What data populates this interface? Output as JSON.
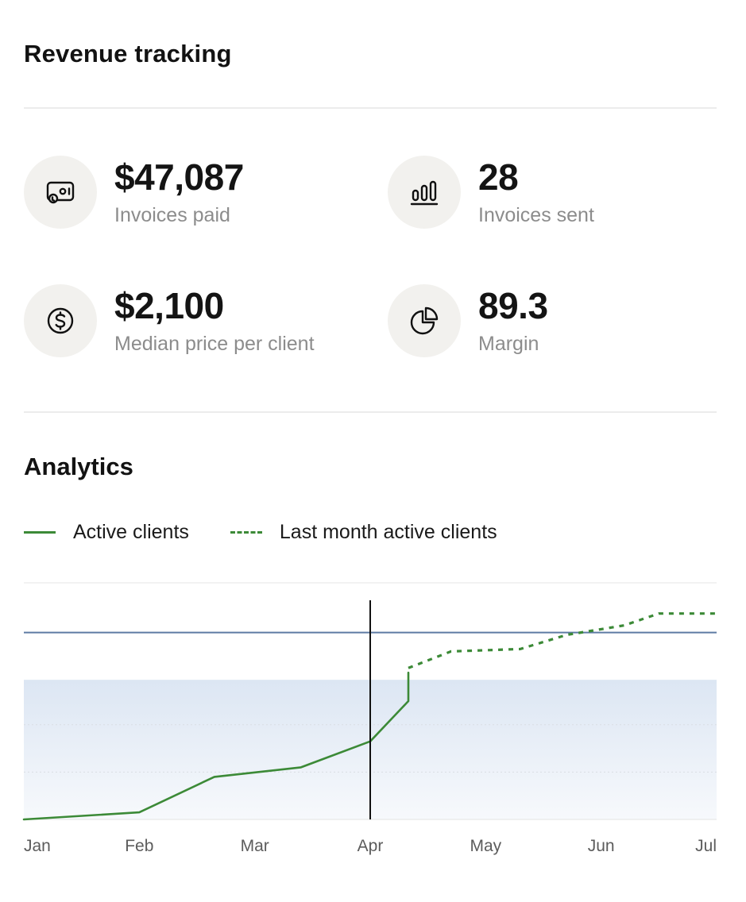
{
  "header": {
    "title": "Revenue tracking"
  },
  "stats": [
    {
      "value": "$47,087",
      "label": "Invoices paid",
      "icon": "invoice-icon"
    },
    {
      "value": "28",
      "label": "Invoices sent",
      "icon": "bar-chart-icon"
    },
    {
      "value": "$2,100",
      "label": "Median price per client",
      "icon": "dollar-icon"
    },
    {
      "value": "89.3",
      "label": "Margin",
      "icon": "pie-chart-icon"
    }
  ],
  "analytics": {
    "title": "Analytics",
    "legend": [
      {
        "label": "Active clients",
        "style": "solid"
      },
      {
        "label": "Last month active clients",
        "style": "dashed"
      }
    ]
  },
  "colors": {
    "series": "#3c8a37",
    "reference_line": "#5d7aa3",
    "band": "#dfe8f5",
    "cursor": "#111111",
    "icon_bg": "#f2f1ee"
  },
  "chart_data": {
    "type": "line",
    "categories": [
      "Jan",
      "Feb",
      "Mar",
      "Apr",
      "May",
      "Jun",
      "Jul"
    ],
    "x_domain": [
      0,
      6
    ],
    "y_domain": [
      0,
      100
    ],
    "cursor_x": 3,
    "reference_y": 79,
    "band": [
      0,
      59
    ],
    "series": [
      {
        "name": "Active clients",
        "style": "solid",
        "points": [
          [
            0,
            0
          ],
          [
            1,
            3
          ],
          [
            1.65,
            18
          ],
          [
            2.4,
            22
          ],
          [
            3,
            33
          ],
          [
            3.33,
            50
          ],
          [
            3.33,
            62
          ]
        ]
      },
      {
        "name": "Last month active clients",
        "style": "dashed",
        "points": [
          [
            3.33,
            64
          ],
          [
            3.7,
            71
          ],
          [
            4.3,
            72
          ],
          [
            4.7,
            78
          ],
          [
            5.2,
            82
          ],
          [
            5.5,
            87
          ],
          [
            6,
            87
          ]
        ]
      }
    ]
  }
}
